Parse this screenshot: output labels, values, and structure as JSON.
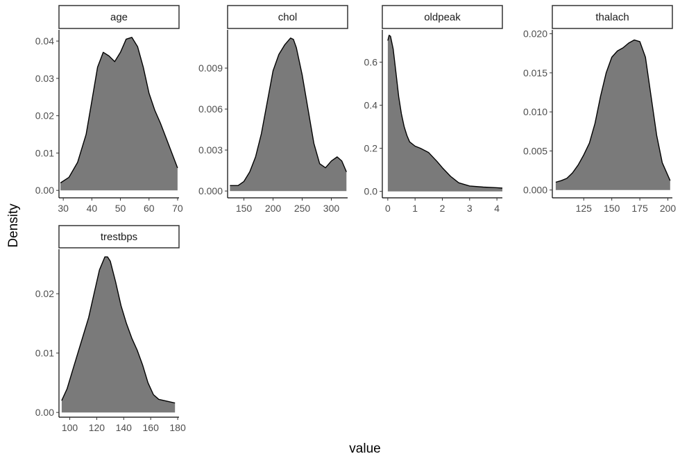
{
  "chart_data": {
    "type": "area",
    "xlabel": "value",
    "ylabel": "Density",
    "fill_color": "#7a7a7a",
    "line_color": "#000000",
    "grid": false,
    "panels": [
      {
        "name": "age",
        "xlim": [
          28.5,
          70.5
        ],
        "ylim": [
          -0.002,
          0.043
        ],
        "xticks": [
          30,
          40,
          50,
          60,
          70
        ],
        "yticks": [
          0.0,
          0.01,
          0.02,
          0.03,
          0.04
        ],
        "ytick_labels": [
          "0.00",
          "0.01",
          "0.02",
          "0.03",
          "0.04"
        ],
        "x": [
          29,
          32,
          35,
          38,
          40,
          42,
          44,
          46,
          48,
          50,
          52,
          54,
          56,
          58,
          60,
          62,
          64,
          66,
          68,
          70
        ],
        "y": [
          0.002,
          0.0035,
          0.0075,
          0.015,
          0.024,
          0.033,
          0.037,
          0.036,
          0.0345,
          0.037,
          0.0405,
          0.041,
          0.0385,
          0.033,
          0.026,
          0.0215,
          0.018,
          0.014,
          0.01,
          0.006
        ]
      },
      {
        "name": "chol",
        "xlim": [
          122,
          328
        ],
        "ylim": [
          -0.0005,
          0.0118
        ],
        "xticks": [
          150,
          200,
          250,
          300
        ],
        "yticks": [
          0.0,
          0.003,
          0.006,
          0.009
        ],
        "ytick_labels": [
          "0.000",
          "0.003",
          "0.006",
          "0.009"
        ],
        "x": [
          126,
          140,
          150,
          160,
          170,
          180,
          190,
          200,
          210,
          220,
          230,
          235,
          240,
          250,
          260,
          270,
          280,
          290,
          300,
          310,
          318,
          326
        ],
        "y": [
          0.0004,
          0.0004,
          0.0007,
          0.0014,
          0.0025,
          0.0042,
          0.0065,
          0.0088,
          0.01,
          0.0107,
          0.0112,
          0.0111,
          0.0105,
          0.0085,
          0.006,
          0.0035,
          0.002,
          0.0017,
          0.0022,
          0.0025,
          0.0022,
          0.0014
        ]
      },
      {
        "name": "oldpeak",
        "xlim": [
          -0.2,
          4.2
        ],
        "ylim": [
          -0.03,
          0.75
        ],
        "xticks": [
          0,
          1,
          2,
          3,
          4
        ],
        "yticks": [
          0.0,
          0.2,
          0.4,
          0.6
        ],
        "ytick_labels": [
          "0.0",
          "0.2",
          "0.4",
          "0.6"
        ],
        "x": [
          0,
          0.05,
          0.1,
          0.2,
          0.3,
          0.4,
          0.5,
          0.6,
          0.7,
          0.8,
          1.0,
          1.2,
          1.5,
          1.8,
          2.0,
          2.3,
          2.6,
          3.0,
          3.5,
          4.0,
          4.2
        ],
        "y": [
          0.7,
          0.725,
          0.72,
          0.66,
          0.55,
          0.44,
          0.36,
          0.3,
          0.26,
          0.23,
          0.21,
          0.2,
          0.18,
          0.14,
          0.11,
          0.07,
          0.04,
          0.025,
          0.02,
          0.017,
          0.015
        ]
      },
      {
        "name": "thalach",
        "xlim": [
          97,
          204
        ],
        "ylim": [
          -0.001,
          0.0205
        ],
        "xticks": [
          125,
          150,
          175,
          200
        ],
        "yticks": [
          0.0,
          0.005,
          0.01,
          0.015,
          0.02
        ],
        "ytick_labels": [
          "0.000",
          "0.005",
          "0.010",
          "0.015",
          "0.020"
        ],
        "x": [
          100,
          105,
          110,
          115,
          120,
          125,
          130,
          135,
          140,
          145,
          150,
          155,
          160,
          165,
          170,
          175,
          180,
          185,
          190,
          195,
          202
        ],
        "y": [
          0.001,
          0.0012,
          0.0015,
          0.0022,
          0.0032,
          0.0045,
          0.006,
          0.0085,
          0.012,
          0.015,
          0.017,
          0.0178,
          0.0182,
          0.0188,
          0.0192,
          0.019,
          0.017,
          0.012,
          0.007,
          0.0035,
          0.0012
        ]
      },
      {
        "name": "trestbps",
        "xlim": [
          92,
          181
        ],
        "ylim": [
          -0.0008,
          0.0275
        ],
        "xticks": [
          100,
          120,
          140,
          160,
          180
        ],
        "yticks": [
          0.0,
          0.01,
          0.02
        ],
        "ytick_labels": [
          "0.00",
          "0.01",
          "0.02"
        ],
        "x": [
          94,
          98,
          102,
          106,
          110,
          114,
          118,
          122,
          126,
          128,
          130,
          134,
          138,
          142,
          146,
          150,
          154,
          158,
          162,
          166,
          170,
          174,
          178
        ],
        "y": [
          0.002,
          0.004,
          0.007,
          0.01,
          0.013,
          0.016,
          0.02,
          0.024,
          0.0262,
          0.0262,
          0.0255,
          0.022,
          0.018,
          0.015,
          0.0125,
          0.0105,
          0.008,
          0.005,
          0.003,
          0.0022,
          0.002,
          0.0018,
          0.0016
        ]
      }
    ]
  }
}
